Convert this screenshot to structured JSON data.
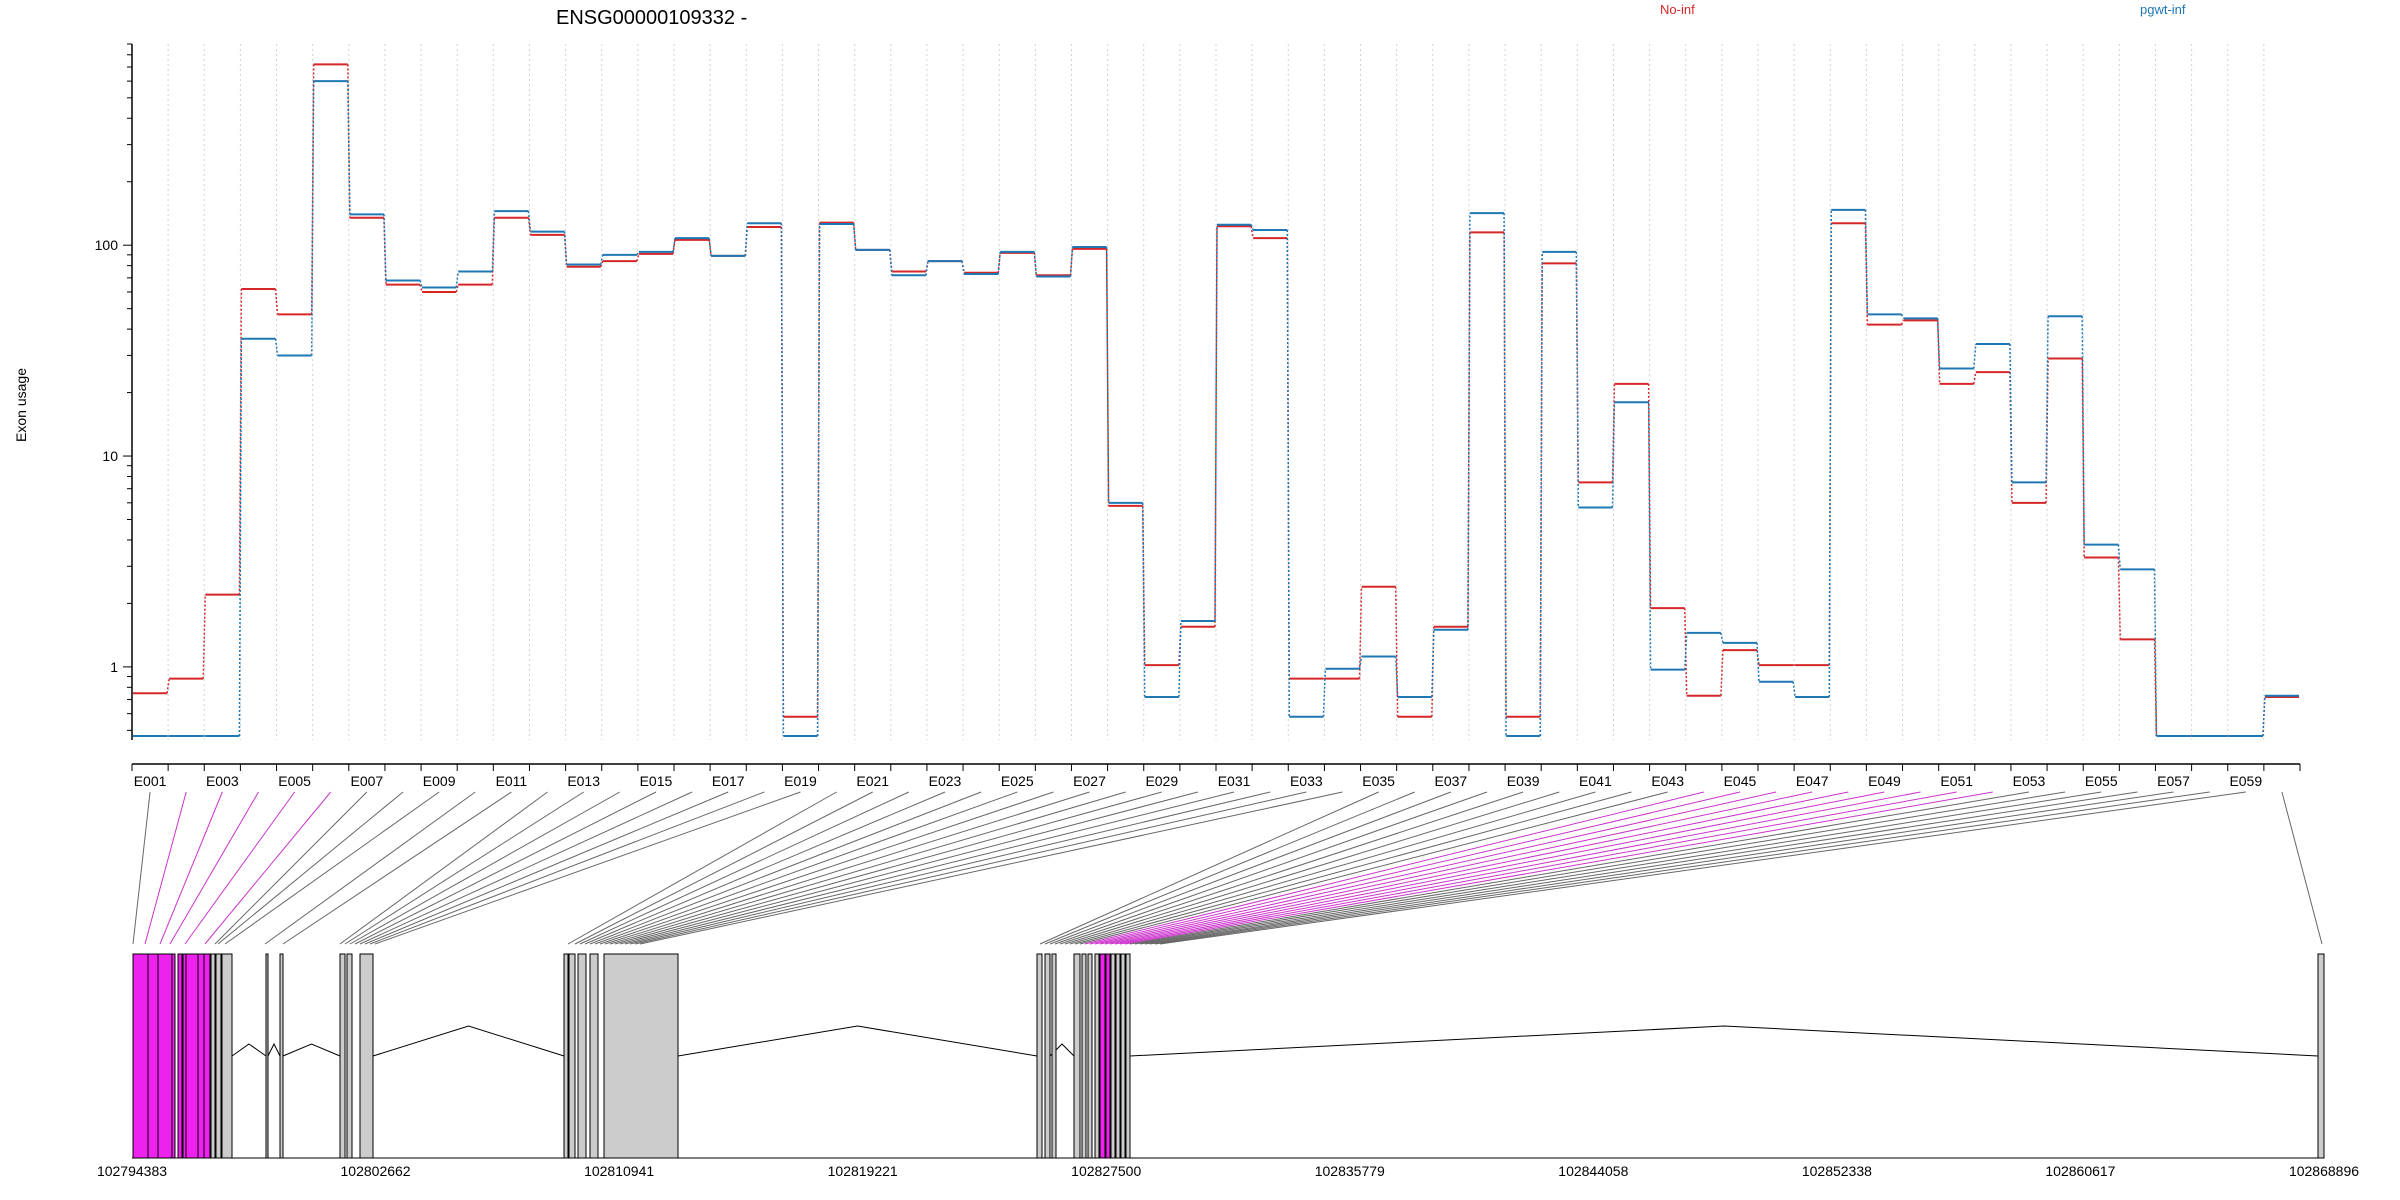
{
  "chart_data": {
    "type": "line",
    "title": "ENSG00000109332 -",
    "ylabel": "Exon usage",
    "yscale": "log",
    "ylim": [
      0.45,
      900
    ],
    "yticks": [
      1,
      10,
      100
    ],
    "ytick_labels": [
      "1",
      "10",
      "100"
    ],
    "grid": "vertical dotted",
    "legend_placement": "top",
    "categories": [
      "E001",
      "E002",
      "E003",
      "E004",
      "E005",
      "E006",
      "E007",
      "E008",
      "E009",
      "E010",
      "E011",
      "E012",
      "E013",
      "E014",
      "E015",
      "E016",
      "E017",
      "E018",
      "E019",
      "E020",
      "E021",
      "E022",
      "E023",
      "E024",
      "E025",
      "E026",
      "E027",
      "E028",
      "E029",
      "E030",
      "E031",
      "E032",
      "E033",
      "E034",
      "E035",
      "E036",
      "E037",
      "E038",
      "E039",
      "E040",
      "E041",
      "E042",
      "E043",
      "E044",
      "E045",
      "E046",
      "E047",
      "E048",
      "E049",
      "E050",
      "E051",
      "E052",
      "E053",
      "E054",
      "E055",
      "E056",
      "E057",
      "E058",
      "E059",
      "E060"
    ],
    "xtick_labels": [
      "E001",
      "E003",
      "E005",
      "E007",
      "E009",
      "E011",
      "E013",
      "E015",
      "E017",
      "E019",
      "E021",
      "E023",
      "E025",
      "E027",
      "E029",
      "E031",
      "E033",
      "E035",
      "E037",
      "E039",
      "E041",
      "E043",
      "E045",
      "E047",
      "E049",
      "E051",
      "E053",
      "E055",
      "E057",
      "E059"
    ],
    "series": [
      {
        "name": "No-inf",
        "color": "#d62728",
        "values": [
          0.75,
          0.88,
          2.2,
          62,
          47,
          720,
          135,
          65,
          60,
          65,
          135,
          112,
          79,
          84,
          91,
          106,
          89,
          122,
          0.58,
          128,
          95,
          75,
          84,
          74,
          92,
          72,
          96,
          5.8,
          1.02,
          1.55,
          123,
          108,
          0.88,
          0.88,
          2.4,
          0.58,
          1.55,
          115,
          0.58,
          82,
          7.5,
          22,
          1.9,
          0.73,
          1.2,
          1.02,
          1.02,
          127,
          42,
          44,
          22,
          25,
          6,
          29,
          3.3,
          1.35,
          0.47,
          0.47,
          0.47,
          0.72
        ]
      },
      {
        "name": "pgwt-inf",
        "color": "#1f77b4",
        "values": [
          0.47,
          0.47,
          0.47,
          36,
          30,
          600,
          140,
          68,
          63,
          75,
          145,
          116,
          81,
          90,
          93,
          108,
          89,
          127,
          0.47,
          126,
          95,
          72,
          84,
          73,
          93,
          71,
          98,
          6,
          0.72,
          1.65,
          125,
          118,
          0.58,
          0.98,
          1.12,
          0.72,
          1.5,
          142,
          0.47,
          93,
          5.7,
          18,
          0.97,
          1.45,
          1.3,
          0.85,
          0.72,
          147,
          47,
          45,
          26,
          34,
          7.5,
          46,
          3.8,
          2.9,
          0.47,
          0.47,
          0.47,
          0.73
        ]
      }
    ],
    "highlighted_exons": [
      "E002",
      "E003",
      "E004",
      "E005",
      "E006",
      "E044",
      "E045",
      "E046",
      "E047",
      "E048",
      "E049",
      "E050",
      "E051",
      "E052"
    ],
    "genomic_axis": {
      "tick_labels": [
        "102794383",
        "102802662",
        "102810941",
        "102819221",
        "102827500",
        "102835779",
        "102844058",
        "102852338",
        "102860617",
        "102868896"
      ]
    },
    "colors": {
      "highlight": "#ee22ee",
      "exon_fill": "#cccccc",
      "exon_stroke": "#000000"
    }
  }
}
